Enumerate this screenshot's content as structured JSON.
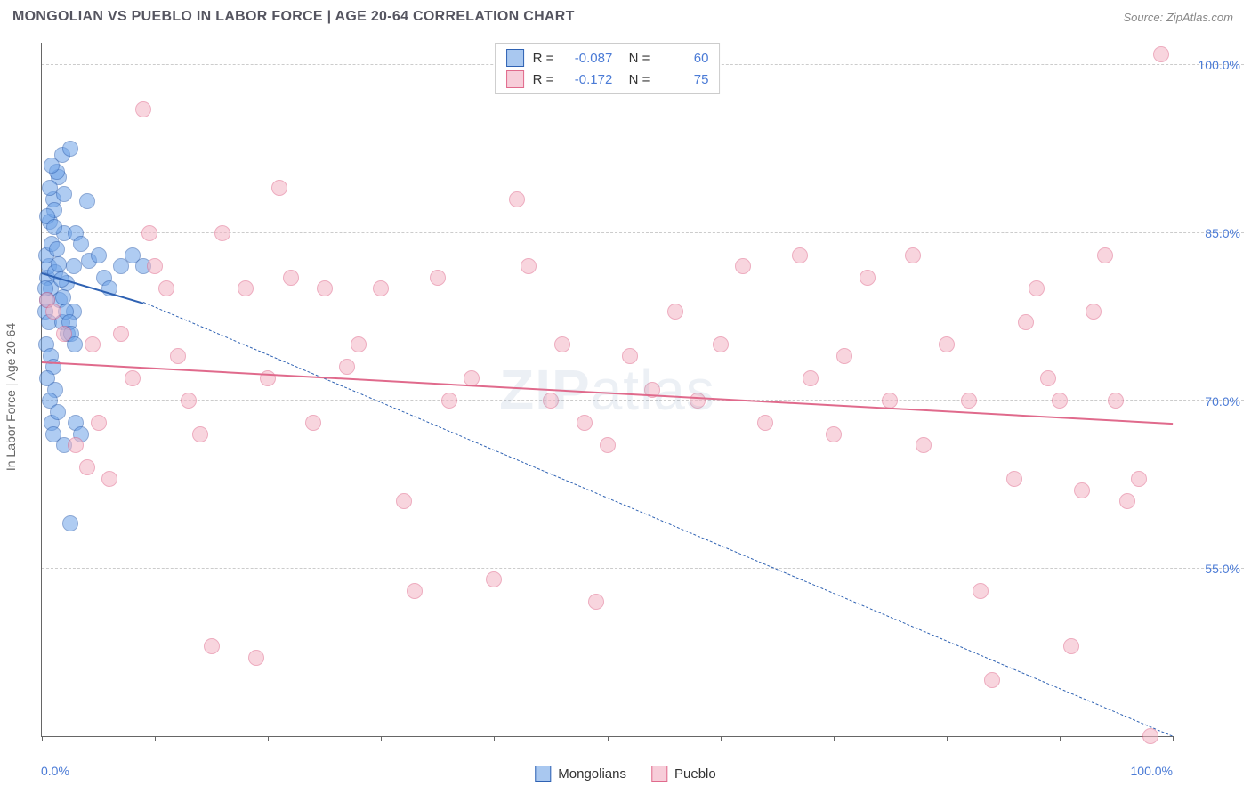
{
  "header": {
    "title": "MONGOLIAN VS PUEBLO IN LABOR FORCE | AGE 20-64 CORRELATION CHART",
    "source_prefix": "Source: ",
    "source": "ZipAtlas.com"
  },
  "watermark": {
    "part1": "ZIP",
    "part2": "atlas"
  },
  "chart": {
    "type": "scatter",
    "y_axis_label": "In Labor Force | Age 20-64",
    "background_color": "#ffffff",
    "grid_color": "#cccccc",
    "axis_color": "#666666",
    "label_color": "#4b7bd6",
    "xlim": [
      0,
      100
    ],
    "ylim": [
      40,
      102
    ],
    "x_ticks": [
      0,
      10,
      20,
      30,
      40,
      50,
      60,
      70,
      80,
      90,
      100
    ],
    "x_tick_labels": {
      "0": "0.0%",
      "100": "100.0%"
    },
    "y_ticks": [
      55,
      70,
      85,
      100
    ],
    "y_tick_labels": {
      "55": "55.0%",
      "70": "70.0%",
      "85": "85.0%",
      "100": "100.0%"
    },
    "marker_radius": 9,
    "marker_opacity": 0.55,
    "series": [
      {
        "name": "Mongolians",
        "color": "#6ea3e8",
        "border": "#2f62b3",
        "R": "-0.087",
        "N": "60",
        "trend": {
          "x1": 0,
          "y1": 81.5,
          "x2": 9,
          "y2": 78.8,
          "width": 2.5,
          "dash": false
        },
        "extrap": {
          "x1": 9,
          "y1": 78.8,
          "x2": 100,
          "y2": 40,
          "width": 1,
          "dash": true
        },
        "points": [
          [
            0.5,
            81
          ],
          [
            0.6,
            82
          ],
          [
            0.8,
            80
          ],
          [
            0.5,
            79
          ],
          [
            0.4,
            83
          ],
          [
            1.0,
            88
          ],
          [
            1.2,
            81.5
          ],
          [
            0.7,
            86
          ],
          [
            1.5,
            90
          ],
          [
            1.8,
            92
          ],
          [
            2.0,
            85
          ],
          [
            0.3,
            78
          ],
          [
            0.9,
            84
          ],
          [
            1.1,
            87
          ],
          [
            2.5,
            92.5
          ],
          [
            1.3,
            90.5
          ],
          [
            0.6,
            77
          ],
          [
            0.4,
            75
          ],
          [
            0.8,
            74
          ],
          [
            1.0,
            73
          ],
          [
            0.5,
            72
          ],
          [
            1.2,
            71
          ],
          [
            0.7,
            70
          ],
          [
            2.0,
            88.5
          ],
          [
            2.8,
            82
          ],
          [
            3.0,
            85
          ],
          [
            3.5,
            84
          ],
          [
            4.0,
            87.8
          ],
          [
            4.2,
            82.5
          ],
          [
            5.0,
            83
          ],
          [
            5.5,
            81
          ],
          [
            6.0,
            80
          ],
          [
            7.0,
            82
          ],
          [
            2.2,
            80.5
          ],
          [
            1.6,
            79
          ],
          [
            0.9,
            68
          ],
          [
            1.0,
            67
          ],
          [
            1.4,
            69
          ],
          [
            2.0,
            66
          ],
          [
            2.5,
            59
          ],
          [
            3.0,
            68
          ],
          [
            3.5,
            67
          ],
          [
            1.8,
            77
          ],
          [
            2.3,
            76
          ],
          [
            2.8,
            78
          ],
          [
            0.5,
            86.5
          ],
          [
            0.7,
            89
          ],
          [
            0.9,
            91
          ],
          [
            1.1,
            85.5
          ],
          [
            1.3,
            83.5
          ],
          [
            1.5,
            82.2
          ],
          [
            1.7,
            80.8
          ],
          [
            1.9,
            79.2
          ],
          [
            2.1,
            78
          ],
          [
            2.4,
            77
          ],
          [
            2.6,
            76
          ],
          [
            2.9,
            75
          ],
          [
            8.0,
            83
          ],
          [
            0.3,
            80
          ],
          [
            9.0,
            82
          ]
        ]
      },
      {
        "name": "Pueblo",
        "color": "#f4b3c4",
        "border": "#e06a8c",
        "R": "-0.172",
        "N": "75",
        "trend": {
          "x1": 0,
          "y1": 73.5,
          "x2": 100,
          "y2": 68,
          "width": 2.5,
          "dash": false
        },
        "points": [
          [
            0.5,
            79
          ],
          [
            1.0,
            78
          ],
          [
            2.0,
            76
          ],
          [
            3.0,
            66
          ],
          [
            4.0,
            64
          ],
          [
            4.5,
            75
          ],
          [
            5.0,
            68
          ],
          [
            6.0,
            63
          ],
          [
            7.0,
            76
          ],
          [
            8.0,
            72
          ],
          [
            9.0,
            96
          ],
          [
            9.5,
            85
          ],
          [
            10.0,
            82
          ],
          [
            11.0,
            80
          ],
          [
            12.0,
            74
          ],
          [
            13.0,
            70
          ],
          [
            14.0,
            67
          ],
          [
            15.0,
            48
          ],
          [
            16.0,
            85
          ],
          [
            18.0,
            80
          ],
          [
            19.0,
            47
          ],
          [
            20.0,
            72
          ],
          [
            21.0,
            89
          ],
          [
            22.0,
            81
          ],
          [
            24.0,
            68
          ],
          [
            25.0,
            80
          ],
          [
            27.0,
            73
          ],
          [
            28.0,
            75
          ],
          [
            30.0,
            80
          ],
          [
            32.0,
            61
          ],
          [
            33.0,
            53
          ],
          [
            35.0,
            81
          ],
          [
            36.0,
            70
          ],
          [
            38.0,
            72
          ],
          [
            40.0,
            54
          ],
          [
            42.0,
            88
          ],
          [
            43.0,
            82
          ],
          [
            45.0,
            70
          ],
          [
            46.0,
            75
          ],
          [
            48.0,
            68
          ],
          [
            49.0,
            52
          ],
          [
            50.0,
            66
          ],
          [
            52.0,
            74
          ],
          [
            54.0,
            71
          ],
          [
            56.0,
            78
          ],
          [
            58.0,
            70
          ],
          [
            60.0,
            75
          ],
          [
            62.0,
            82
          ],
          [
            64.0,
            68
          ],
          [
            67.0,
            83
          ],
          [
            68.0,
            72
          ],
          [
            70.0,
            67
          ],
          [
            71.0,
            74
          ],
          [
            73.0,
            81
          ],
          [
            75.0,
            70
          ],
          [
            77.0,
            83
          ],
          [
            78.0,
            66
          ],
          [
            80.0,
            75
          ],
          [
            82.0,
            70
          ],
          [
            83.0,
            53
          ],
          [
            84.0,
            45
          ],
          [
            86.0,
            63
          ],
          [
            87.0,
            77
          ],
          [
            88.0,
            80
          ],
          [
            89.0,
            72
          ],
          [
            90.0,
            70
          ],
          [
            91.0,
            48
          ],
          [
            92.0,
            62
          ],
          [
            93.0,
            78
          ],
          [
            94.0,
            83
          ],
          [
            95.0,
            70
          ],
          [
            96.0,
            61
          ],
          [
            97.0,
            63
          ],
          [
            98.0,
            40
          ],
          [
            99.0,
            101
          ]
        ]
      }
    ]
  },
  "legend_bottom": [
    {
      "label": "Mongolians",
      "fill": "#a9c8f0",
      "border": "#2f62b3"
    },
    {
      "label": "Pueblo",
      "fill": "#f7cdd9",
      "border": "#e06a8c"
    }
  ]
}
